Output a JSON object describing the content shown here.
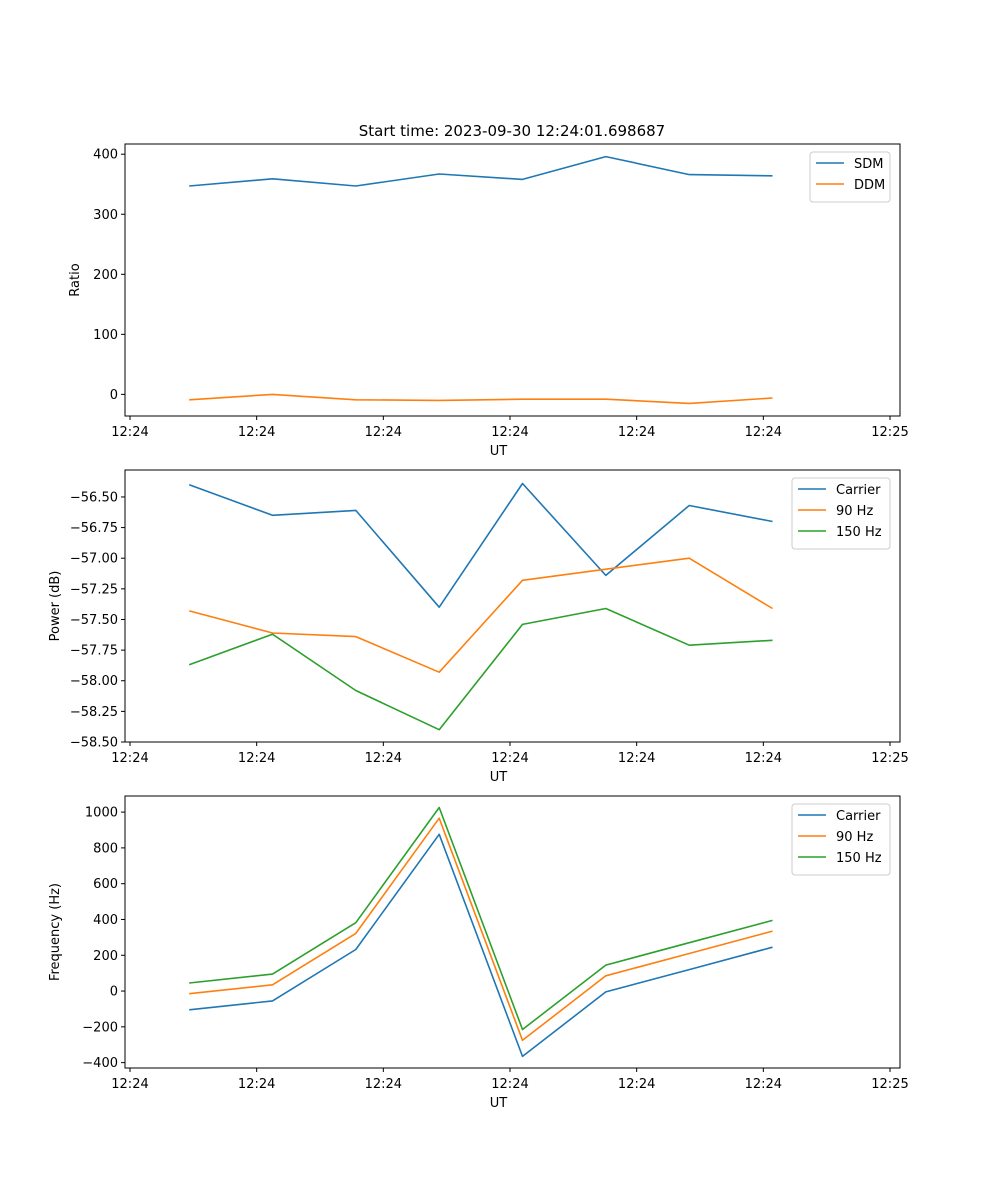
{
  "figure_title": "Start time: 2023-09-30 12:24:01.698687",
  "colors": {
    "blue": "#1f77b4",
    "orange": "#ff7f0e",
    "green": "#2ca02c"
  },
  "chart_data": [
    {
      "type": "line",
      "title": "Start time: 2023-09-30 12:24:01.698687",
      "xlabel": "UT",
      "ylabel": "Ratio",
      "xticks": [
        "12:24",
        "12:24",
        "12:24",
        "12:24",
        "12:24",
        "12:24",
        "12:24"
      ],
      "xticks_end": "12:25",
      "xlim": [
        0,
        9.3
      ],
      "ylim": [
        -36,
        417
      ],
      "yticks": [
        0,
        100,
        200,
        300,
        400
      ],
      "legend": "top-right",
      "x": [
        0.77,
        1.77,
        2.77,
        3.77,
        4.77,
        5.77,
        6.77,
        7.77
      ],
      "series": [
        {
          "name": "SDM",
          "color": "#1f77b4",
          "values": [
            347,
            359,
            347,
            367,
            358,
            396,
            366,
            364
          ]
        },
        {
          "name": "DDM",
          "color": "#ff7f0e",
          "values": [
            -9,
            0,
            -9,
            -10,
            -8,
            -8,
            -15,
            -6
          ]
        }
      ]
    },
    {
      "type": "line",
      "xlabel": "UT",
      "ylabel": "Power (dB)",
      "xticks": [
        "12:24",
        "12:24",
        "12:24",
        "12:24",
        "12:24",
        "12:24",
        "12:24"
      ],
      "xticks_end": "12:25",
      "xlim": [
        0,
        9.3
      ],
      "ylim": [
        -58.5,
        -56.28
      ],
      "yticks": [
        -58.5,
        -58.25,
        -58.0,
        -57.75,
        -57.5,
        -57.25,
        -57.0,
        -56.75,
        -56.5
      ],
      "ytick_labels": [
        "−58.50",
        "−58.25",
        "−58.00",
        "−57.75",
        "−57.50",
        "−57.25",
        "−57.00",
        "−56.75",
        "−56.50"
      ],
      "legend": "top-right",
      "x": [
        0.77,
        1.77,
        2.77,
        3.77,
        4.77,
        5.77,
        6.77,
        7.77
      ],
      "series": [
        {
          "name": "Carrier",
          "color": "#1f77b4",
          "values": [
            -56.4,
            -56.65,
            -56.61,
            -57.4,
            -56.39,
            -57.14,
            -56.57,
            -56.7
          ]
        },
        {
          "name": "90 Hz",
          "color": "#ff7f0e",
          "values": [
            -57.43,
            -57.61,
            -57.64,
            -57.93,
            -57.18,
            -57.09,
            -57.0,
            -57.41
          ]
        },
        {
          "name": "150 Hz",
          "color": "#2ca02c",
          "values": [
            -57.87,
            -57.62,
            -58.08,
            -58.4,
            -57.54,
            -57.41,
            -57.71,
            -57.67
          ]
        }
      ]
    },
    {
      "type": "line",
      "xlabel": "UT",
      "ylabel": "Frequency (Hz)",
      "xticks": [
        "12:24",
        "12:24",
        "12:24",
        "12:24",
        "12:24",
        "12:24",
        "12:24"
      ],
      "xticks_end": "12:25",
      "xlim": [
        0,
        9.3
      ],
      "ylim": [
        -430,
        1090
      ],
      "yticks": [
        -400,
        -200,
        0,
        200,
        400,
        600,
        800,
        1000
      ],
      "ytick_labels": [
        "−400",
        "−200",
        "0",
        "200",
        "400",
        "600",
        "800",
        "1000"
      ],
      "legend": "top-right",
      "x": [
        0.77,
        1.77,
        2.77,
        3.77,
        4.77,
        5.77,
        6.77,
        7.77
      ],
      "series": [
        {
          "name": "Carrier",
          "color": "#1f77b4",
          "values": [
            -105,
            -55,
            232,
            876,
            -365,
            -5,
            120,
            245
          ]
        },
        {
          "name": "90 Hz",
          "color": "#ff7f0e",
          "values": [
            -15,
            35,
            322,
            966,
            -275,
            85,
            210,
            335
          ]
        },
        {
          "name": "150 Hz",
          "color": "#2ca02c",
          "values": [
            45,
            95,
            382,
            1026,
            -215,
            145,
            270,
            395
          ]
        }
      ]
    }
  ]
}
